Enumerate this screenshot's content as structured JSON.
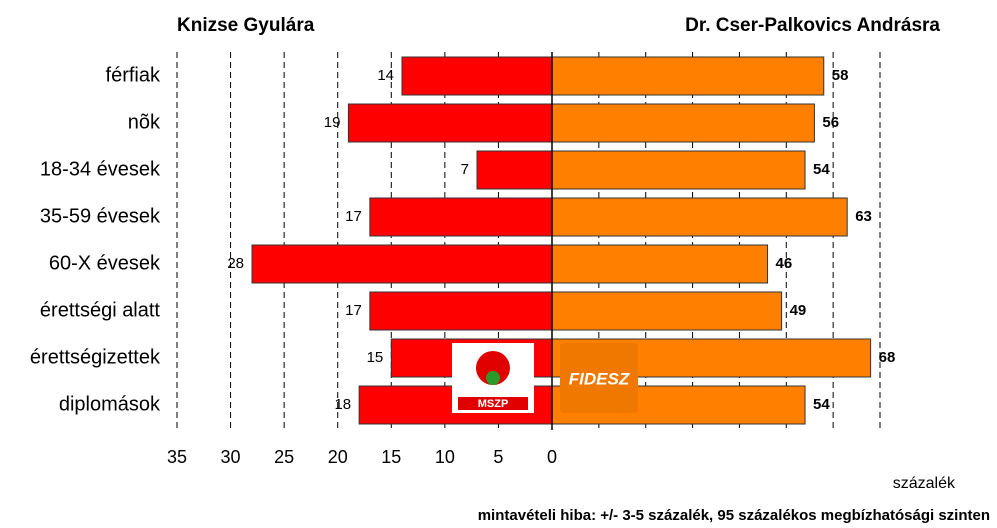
{
  "chart_data": {
    "type": "bar",
    "orientation": "horizontal",
    "categories": [
      "férfiak",
      "nõk",
      "18-34 évesek",
      "35-59 évesek",
      "60-X évesek",
      "érettségi alatt",
      "érettségizettek",
      "diplomások"
    ],
    "series": [
      {
        "name": "Knizse Gyulára",
        "color": "#ff0000",
        "values": [
          14,
          19,
          7,
          17,
          28,
          17,
          15,
          18
        ]
      },
      {
        "name": "Dr. Cser-Palkovics Andrásra",
        "color": "#ff8000",
        "values": [
          58,
          56,
          54,
          63,
          46,
          49,
          68,
          54
        ],
        "axis": "x2"
      }
    ],
    "xlim": [
      35,
      0
    ],
    "xticks": [
      35,
      30,
      25,
      20,
      15,
      10,
      5,
      0
    ],
    "x2lim": [
      0,
      70
    ],
    "x2ticks": [
      10,
      20,
      30,
      40,
      50,
      60,
      70
    ],
    "grid": true,
    "xlabel": "százalék",
    "footnote": "mintavételi hiba: +/- 3-5 százalék, 95 százalékos megbízhatósági szinten"
  }
}
